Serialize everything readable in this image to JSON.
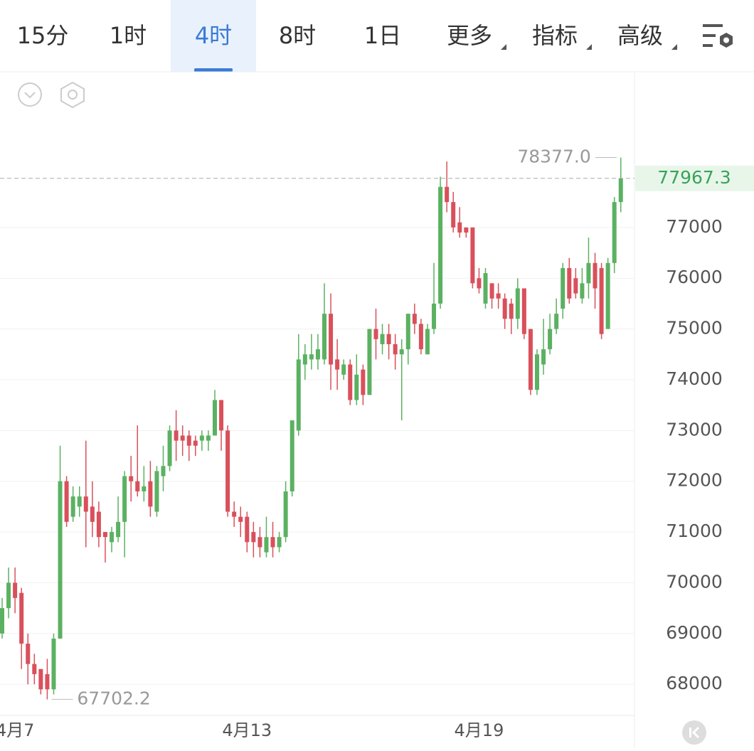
{
  "tabs": [
    "15分",
    "1时",
    "4时",
    "8时",
    "1日",
    "更多",
    "指标",
    "高级"
  ],
  "active_tab": 2,
  "chart_data": {
    "type": "candlestick",
    "categories": [
      null,
      null,
      "4月7",
      null,
      null,
      null,
      null,
      null,
      null,
      null,
      null,
      null,
      null,
      null,
      null,
      null,
      null,
      null,
      null,
      null,
      null,
      null,
      null,
      null,
      null,
      null,
      null,
      null,
      null,
      null,
      null,
      null,
      null,
      null,
      null,
      null,
      null,
      null,
      "4月13",
      null,
      null,
      null,
      null,
      null,
      null,
      null,
      null,
      null,
      null,
      null,
      null,
      null,
      null,
      null,
      null,
      null,
      null,
      null,
      null,
      null,
      null,
      null,
      null,
      null,
      null,
      null,
      null,
      null,
      null,
      null,
      null,
      null,
      null,
      null,
      "4月19",
      null,
      null,
      null,
      null,
      null,
      null,
      null,
      null,
      null,
      null,
      null,
      null,
      null,
      null,
      null,
      null,
      null,
      null,
      null,
      null,
      null,
      null
    ],
    "open": [
      69000,
      69500,
      70000,
      69800,
      68800,
      68400,
      68300,
      68200,
      67900,
      68900,
      72000,
      71300,
      71500,
      71700,
      71500,
      71400,
      71000,
      70800,
      70900,
      71200,
      72100,
      72000,
      71800,
      72000,
      71400,
      72100,
      72300,
      73000,
      72900,
      72900,
      72800,
      72800,
      72800,
      72900,
      73600,
      73000,
      71400,
      71300,
      71300,
      71000,
      70900,
      70600,
      70900,
      70700,
      70900,
      71800,
      73000,
      74300,
      74400,
      74400,
      74400,
      75300,
      74400,
      74100,
      74300,
      73600,
      74200,
      73700,
      75000,
      74700,
      74900,
      74700,
      74500,
      74600,
      75300,
      75100,
      74500,
      75000,
      75500,
      77800,
      77500,
      77100,
      77000,
      77000,
      76000,
      75500,
      75900,
      75700,
      75600,
      75500,
      75200,
      75800,
      75000,
      73800,
      74300,
      74600,
      75000,
      75400,
      76200,
      76000,
      75600,
      75900,
      76300,
      76200,
      75000,
      76300,
      77500
    ],
    "high": [
      69700,
      70300,
      70300,
      69900,
      69000,
      68600,
      68300,
      68500,
      69000,
      72700,
      72100,
      71900,
      71900,
      72800,
      72000,
      71600,
      71000,
      71100,
      71700,
      72200,
      72500,
      73100,
      72300,
      72400,
      72300,
      72700,
      73100,
      73400,
      73100,
      73000,
      72900,
      73000,
      73000,
      73800,
      73600,
      73100,
      71600,
      71500,
      71400,
      71200,
      71100,
      71300,
      71200,
      71000,
      72000,
      73200,
      74900,
      74700,
      74900,
      74900,
      75900,
      75700,
      74800,
      74400,
      74400,
      74500,
      74300,
      75000,
      75400,
      75100,
      75100,
      74900,
      74800,
      75300,
      75500,
      75200,
      75100,
      76300,
      78000,
      78300,
      77700,
      77400,
      77000,
      77000,
      76200,
      76200,
      75900,
      75900,
      75700,
      75600,
      76000,
      75800,
      75000,
      74600,
      75200,
      75300,
      75600,
      76300,
      76400,
      76200,
      76200,
      76800,
      76500,
      76300,
      76400,
      77600,
      78377
    ],
    "low": [
      68900,
      69300,
      69400,
      68300,
      68000,
      68000,
      67800,
      67702.2,
      67800,
      68900,
      71100,
      71200,
      71300,
      70700,
      70900,
      70700,
      70400,
      70600,
      70800,
      70500,
      71600,
      71700,
      71600,
      71300,
      71300,
      71800,
      72200,
      72400,
      72500,
      72400,
      72500,
      72600,
      72600,
      72900,
      72600,
      71300,
      71100,
      70900,
      70600,
      70500,
      70500,
      70500,
      70500,
      70600,
      70800,
      71700,
      72900,
      74000,
      74200,
      74200,
      74300,
      73800,
      73800,
      74000,
      73500,
      73500,
      73500,
      73700,
      74400,
      74500,
      74400,
      74200,
      73200,
      74300,
      74900,
      74500,
      74500,
      74900,
      75400,
      77300,
      76900,
      76800,
      76800,
      75800,
      75700,
      75400,
      75400,
      75400,
      75000,
      74900,
      75000,
      74800,
      73700,
      73700,
      74100,
      74500,
      74900,
      75200,
      75500,
      75600,
      75500,
      75600,
      75400,
      74800,
      75000,
      76100,
      77300
    ],
    "close": [
      69500,
      70000,
      69700,
      68800,
      68400,
      68200,
      67900,
      67900,
      68900,
      72000,
      71200,
      71700,
      71700,
      71400,
      71200,
      70900,
      70900,
      71000,
      71200,
      72100,
      72000,
      71800,
      71900,
      71500,
      72200,
      72300,
      73000,
      72800,
      72800,
      72700,
      72700,
      72900,
      72900,
      73600,
      73000,
      71400,
      71300,
      71200,
      70800,
      70800,
      70700,
      70900,
      70700,
      70900,
      71800,
      73200,
      74400,
      74500,
      74500,
      74600,
      75300,
      74300,
      74200,
      74300,
      73600,
      74100,
      73700,
      75000,
      74800,
      74900,
      74700,
      74500,
      74600,
      75300,
      75100,
      74600,
      75000,
      75500,
      77800,
      77500,
      77000,
      76900,
      76900,
      75900,
      75800,
      76100,
      75600,
      75600,
      75200,
      75200,
      75800,
      74900,
      73800,
      74500,
      74600,
      75000,
      75300,
      76200,
      75600,
      75700,
      75900,
      76300,
      75800,
      74900,
      76300,
      77500,
      77967.3
    ],
    "up_color": "#5bb162",
    "down_color": "#d9505b",
    "ylim": [
      67400,
      80080
    ],
    "yticks": [
      68000,
      69000,
      70000,
      71000,
      72000,
      73000,
      74000,
      75000,
      76000,
      77000
    ],
    "max_label": {
      "value": 78377,
      "label": "78377.0"
    },
    "min_label": 67702.2,
    "grid": true
  }
}
